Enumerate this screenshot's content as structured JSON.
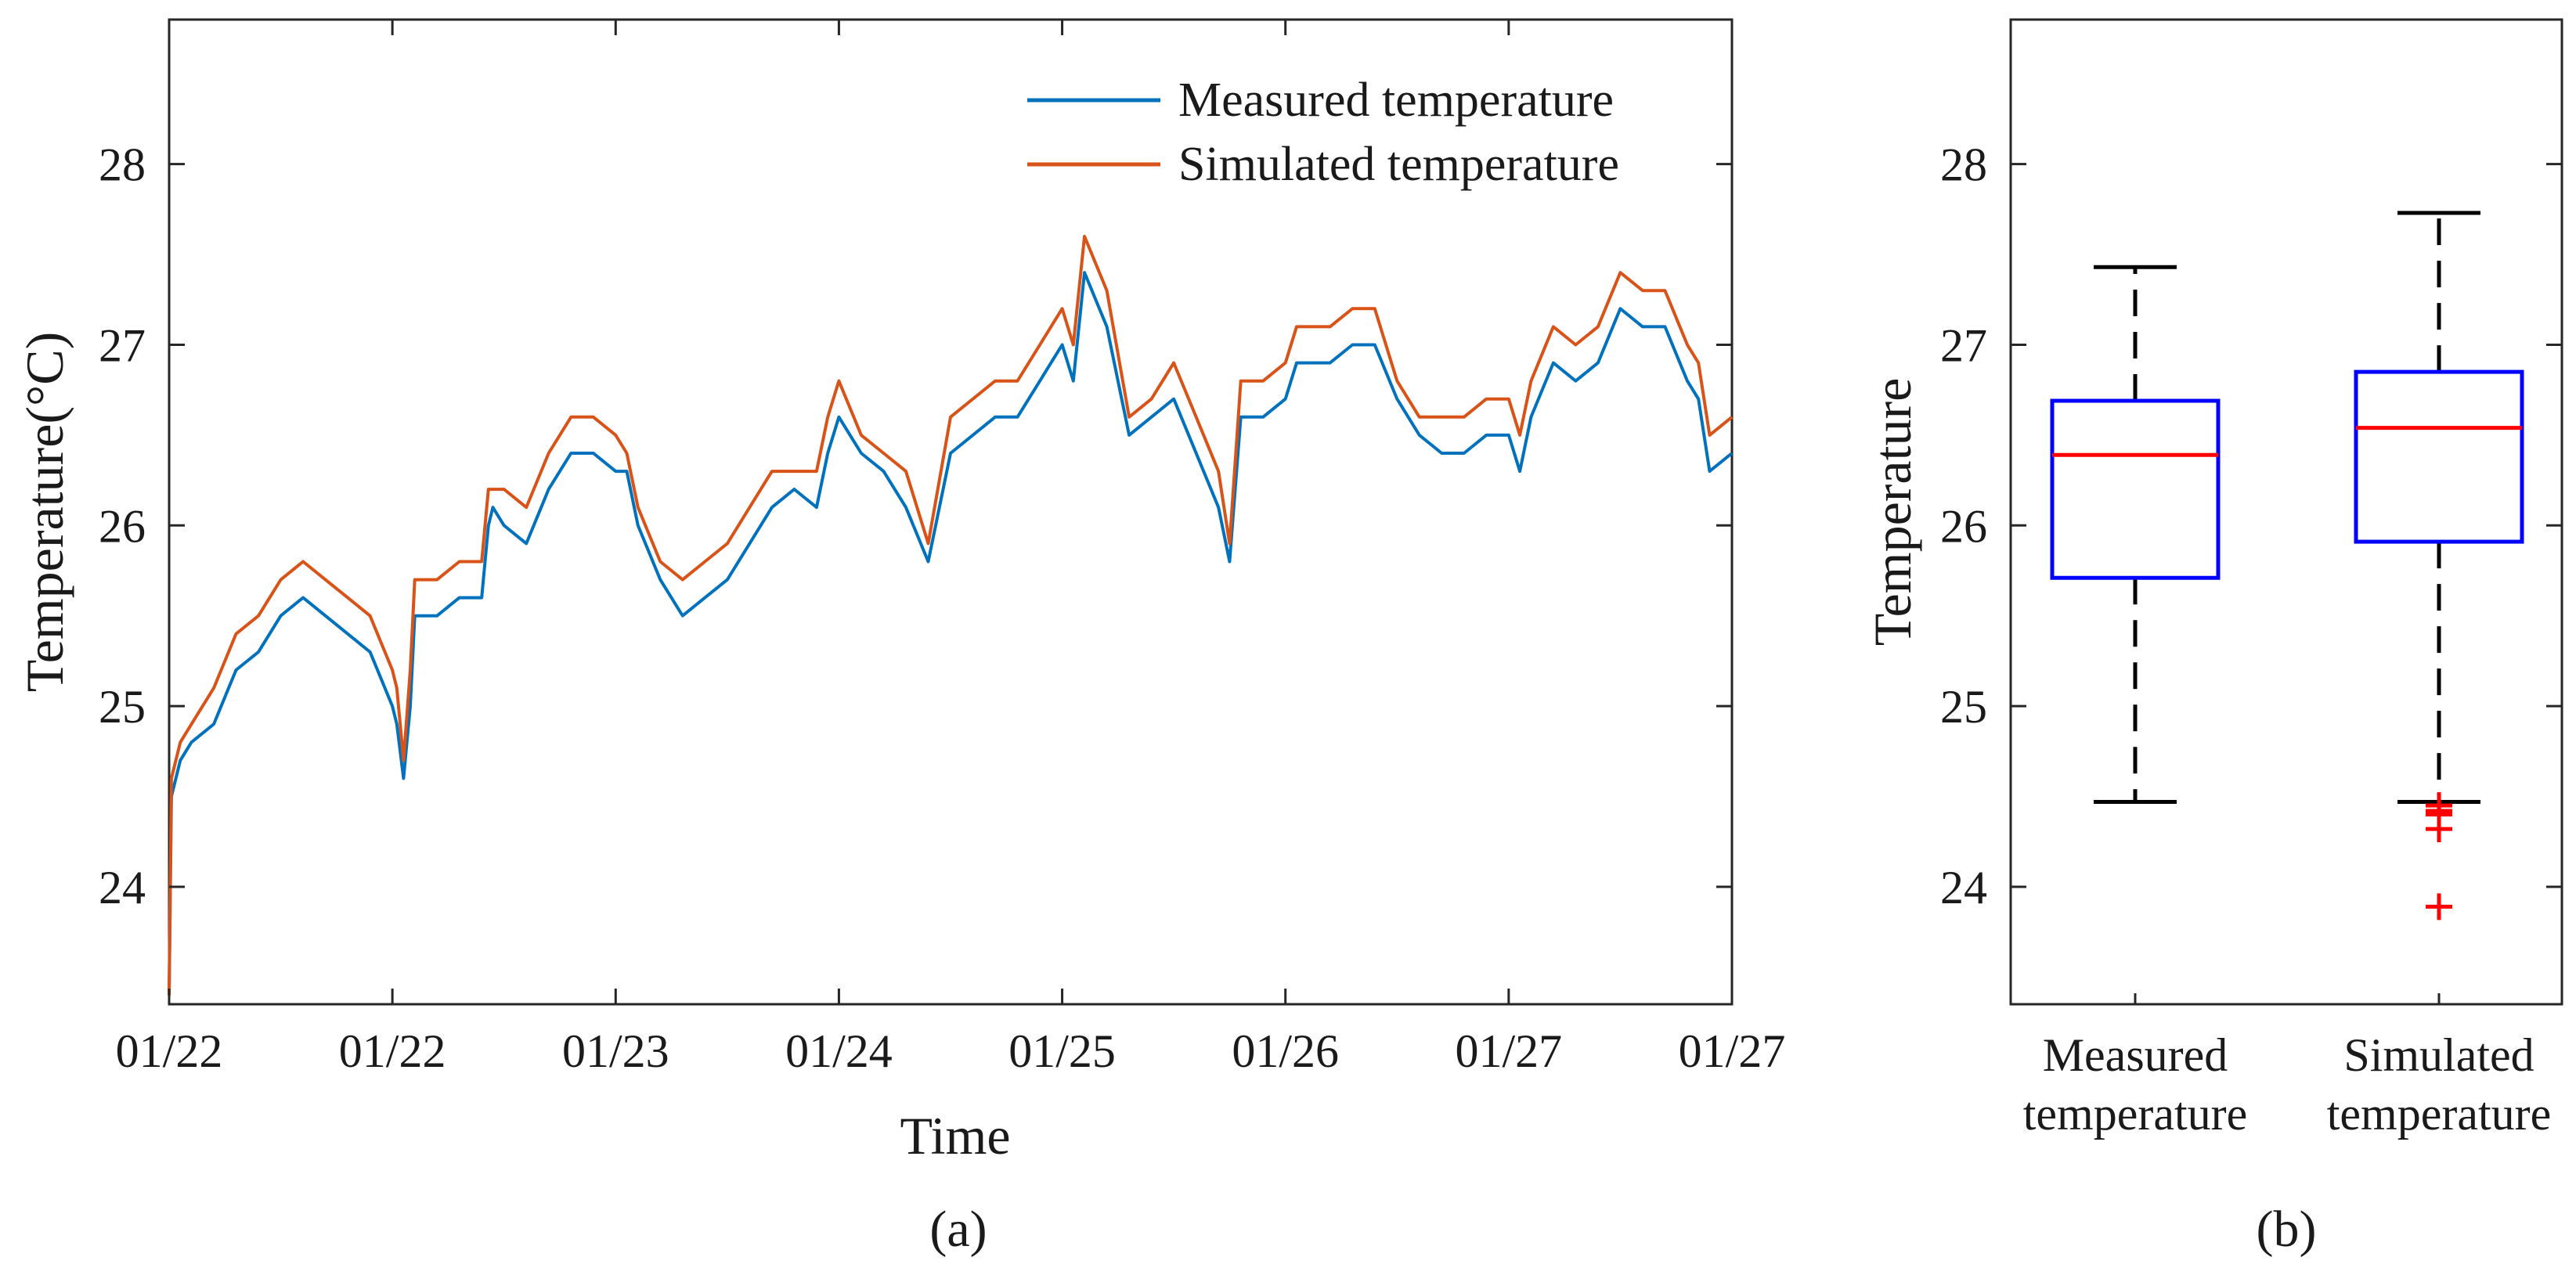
{
  "figure": {
    "panel_a_label": "(a)",
    "panel_b_label": "(b)"
  },
  "chart_data": [
    {
      "type": "line",
      "panel": "a",
      "title": "",
      "xlabel": "Time",
      "ylabel": "Temperature(°C)",
      "ylim": [
        23.35,
        28.8
      ],
      "xlim": [
        0,
        7
      ],
      "yticks": [
        24,
        25,
        26,
        27,
        28
      ],
      "xtick_labels": [
        "01/22",
        "01/22",
        "01/23",
        "01/24",
        "01/25",
        "01/26",
        "01/27",
        "01/27"
      ],
      "legend_position": "top-right",
      "grid": false,
      "colors": {
        "measured": "#0072BD",
        "simulated": "#D95319"
      },
      "x": [
        0,
        0.01,
        0.05,
        0.1,
        0.2,
        0.3,
        0.4,
        0.5,
        0.6,
        0.7,
        0.8,
        0.9,
        1.0,
        1.02,
        1.05,
        1.08,
        1.1,
        1.2,
        1.3,
        1.4,
        1.43,
        1.45,
        1.5,
        1.6,
        1.7,
        1.8,
        1.9,
        2.0,
        2.05,
        2.1,
        2.2,
        2.3,
        2.4,
        2.5,
        2.6,
        2.7,
        2.8,
        2.9,
        2.95,
        3.0,
        3.1,
        3.2,
        3.3,
        3.4,
        3.5,
        3.6,
        3.7,
        3.8,
        3.9,
        3.95,
        4.0,
        4.05,
        4.1,
        4.2,
        4.3,
        4.4,
        4.5,
        4.6,
        4.7,
        4.75,
        4.8,
        4.9,
        5.0,
        5.05,
        5.1,
        5.2,
        5.3,
        5.4,
        5.5,
        5.6,
        5.7,
        5.8,
        5.9,
        6.0,
        6.05,
        6.1,
        6.2,
        6.3,
        6.4,
        6.5,
        6.6,
        6.7,
        6.8,
        6.85,
        6.9,
        7.0
      ],
      "series": [
        {
          "name": "Measured temperature",
          "values": [
            23.4,
            24.5,
            24.7,
            24.8,
            24.9,
            25.2,
            25.3,
            25.5,
            25.6,
            25.5,
            25.4,
            25.3,
            25.0,
            24.9,
            24.6,
            25.0,
            25.5,
            25.5,
            25.6,
            25.6,
            26.0,
            26.1,
            26.0,
            25.9,
            26.2,
            26.4,
            26.4,
            26.3,
            26.3,
            26.0,
            25.7,
            25.5,
            25.6,
            25.7,
            25.9,
            26.1,
            26.2,
            26.1,
            26.4,
            26.6,
            26.4,
            26.3,
            26.1,
            25.8,
            26.4,
            26.5,
            26.6,
            26.6,
            26.8,
            26.9,
            27.0,
            26.8,
            27.4,
            27.1,
            26.5,
            26.6,
            26.7,
            26.4,
            26.1,
            25.8,
            26.6,
            26.6,
            26.7,
            26.9,
            26.9,
            26.9,
            27.0,
            27.0,
            26.7,
            26.5,
            26.4,
            26.4,
            26.5,
            26.5,
            26.3,
            26.6,
            26.9,
            26.8,
            26.9,
            27.2,
            27.1,
            27.1,
            26.8,
            26.7,
            26.3,
            26.4
          ]
        },
        {
          "name": "Simulated temperature",
          "values": [
            23.4,
            24.6,
            24.8,
            24.9,
            25.1,
            25.4,
            25.5,
            25.7,
            25.8,
            25.7,
            25.6,
            25.5,
            25.2,
            25.1,
            24.7,
            25.2,
            25.7,
            25.7,
            25.8,
            25.8,
            26.2,
            26.2,
            26.2,
            26.1,
            26.4,
            26.6,
            26.6,
            26.5,
            26.4,
            26.1,
            25.8,
            25.7,
            25.8,
            25.9,
            26.1,
            26.3,
            26.3,
            26.3,
            26.6,
            26.8,
            26.5,
            26.4,
            26.3,
            25.9,
            26.6,
            26.7,
            26.8,
            26.8,
            27.0,
            27.1,
            27.2,
            27.0,
            27.6,
            27.3,
            26.6,
            26.7,
            26.9,
            26.6,
            26.3,
            25.9,
            26.8,
            26.8,
            26.9,
            27.1,
            27.1,
            27.1,
            27.2,
            27.2,
            26.8,
            26.6,
            26.6,
            26.6,
            26.7,
            26.7,
            26.5,
            26.8,
            27.1,
            27.0,
            27.1,
            27.4,
            27.3,
            27.3,
            27.0,
            26.9,
            26.5,
            26.6
          ]
        }
      ]
    },
    {
      "type": "box",
      "panel": "b",
      "title": "",
      "xlabel": "",
      "ylabel": "Temperature",
      "ylim": [
        23.35,
        28.8
      ],
      "yticks": [
        24,
        25,
        26,
        27,
        28
      ],
      "categories": [
        [
          "Measured",
          "temperature"
        ],
        [
          "Simulated",
          "temperature"
        ]
      ],
      "colors": {
        "box": "#0000FF",
        "median": "#FF0000",
        "whisker": "#000000",
        "outlier": "#FF0000"
      },
      "boxes": [
        {
          "name": "Measured temperature",
          "whisker_low": 24.47,
          "q1": 25.71,
          "median": 26.39,
          "q3": 26.69,
          "whisker_high": 27.43,
          "outliers": []
        },
        {
          "name": "Simulated temperature",
          "whisker_low": 24.47,
          "q1": 25.91,
          "median": 26.54,
          "q3": 26.85,
          "whisker_high": 27.73,
          "outliers": [
            24.45,
            24.42,
            24.4,
            24.32,
            23.89
          ]
        }
      ]
    }
  ]
}
